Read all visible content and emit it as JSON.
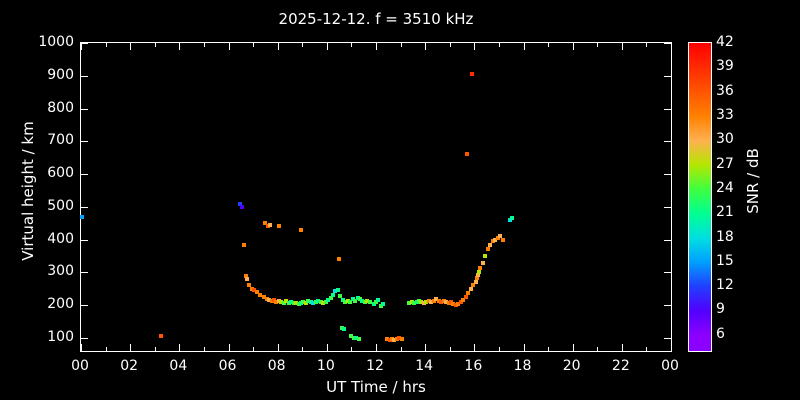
{
  "title": "2025-12-12. f = 3510 kHz",
  "axes": {
    "xlabel": "UT Time / hrs",
    "ylabel": "Virtual height / km",
    "xlim": [
      0,
      24
    ],
    "ylim": [
      60,
      1000
    ],
    "x_ticks": [
      {
        "v": 0,
        "label": "00"
      },
      {
        "v": 2,
        "label": "02"
      },
      {
        "v": 4,
        "label": "04"
      },
      {
        "v": 6,
        "label": "06"
      },
      {
        "v": 8,
        "label": "08"
      },
      {
        "v": 10,
        "label": "10"
      },
      {
        "v": 12,
        "label": "12"
      },
      {
        "v": 14,
        "label": "14"
      },
      {
        "v": 16,
        "label": "16"
      },
      {
        "v": 18,
        "label": "18"
      },
      {
        "v": 20,
        "label": "20"
      },
      {
        "v": 22,
        "label": "22"
      },
      {
        "v": 24,
        "label": "00"
      }
    ],
    "x_minor_step": 1,
    "y_ticks": [
      {
        "v": 100,
        "label": "100"
      },
      {
        "v": 200,
        "label": "200"
      },
      {
        "v": 300,
        "label": "300"
      },
      {
        "v": 400,
        "label": "400"
      },
      {
        "v": 500,
        "label": "500"
      },
      {
        "v": 600,
        "label": "600"
      },
      {
        "v": 700,
        "label": "700"
      },
      {
        "v": 800,
        "label": "800"
      },
      {
        "v": 900,
        "label": "900"
      },
      {
        "v": 1000,
        "label": "1000"
      }
    ],
    "background": "#000000",
    "frame_color": "#ffffff",
    "grid": false
  },
  "colorbar": {
    "label": "SNR / dB",
    "vmin": 4,
    "vmax": 42,
    "ticks": [
      42,
      39,
      36,
      33,
      30,
      27,
      24,
      21,
      18,
      15,
      12,
      9,
      6
    ],
    "stops": [
      {
        "v": 6,
        "c": "#8b00ff"
      },
      {
        "v": 9,
        "c": "#5000ff"
      },
      {
        "v": 12,
        "c": "#2040ff"
      },
      {
        "v": 15,
        "c": "#00a0ff"
      },
      {
        "v": 18,
        "c": "#00e0e0"
      },
      {
        "v": 21,
        "c": "#00ff90"
      },
      {
        "v": 24,
        "c": "#40ff40"
      },
      {
        "v": 27,
        "c": "#b4e600"
      },
      {
        "v": 30,
        "c": "#ffb050"
      },
      {
        "v": 33,
        "c": "#ff8000"
      },
      {
        "v": 36,
        "c": "#ff5500"
      },
      {
        "v": 39,
        "c": "#ff2a00"
      },
      {
        "v": 42,
        "c": "#ff0000"
      }
    ]
  },
  "chart_data": {
    "type": "scatter",
    "x_units": "hours UT",
    "y_units": "km",
    "c_units": "dB SNR",
    "points": [
      [
        0.05,
        470,
        15
      ],
      [
        3.25,
        105,
        36
      ],
      [
        6.45,
        510,
        12
      ],
      [
        6.55,
        500,
        9
      ],
      [
        6.65,
        385,
        33
      ],
      [
        6.7,
        290,
        33
      ],
      [
        6.75,
        280,
        30
      ],
      [
        6.85,
        260,
        33
      ],
      [
        6.95,
        250,
        33
      ],
      [
        7.05,
        245,
        36
      ],
      [
        7.15,
        240,
        33
      ],
      [
        7.3,
        230,
        33
      ],
      [
        7.45,
        225,
        33
      ],
      [
        7.5,
        450,
        33
      ],
      [
        7.6,
        440,
        36
      ],
      [
        7.7,
        445,
        30
      ],
      [
        8.05,
        440,
        33
      ],
      [
        8.95,
        430,
        33
      ],
      [
        7.55,
        220,
        33
      ],
      [
        7.65,
        215,
        30
      ],
      [
        7.75,
        212,
        33
      ],
      [
        7.85,
        215,
        36
      ],
      [
        7.95,
        210,
        33
      ],
      [
        8.05,
        213,
        30
      ],
      [
        8.15,
        210,
        27
      ],
      [
        8.25,
        208,
        24
      ],
      [
        8.35,
        212,
        27
      ],
      [
        8.45,
        207,
        24
      ],
      [
        8.55,
        210,
        21
      ],
      [
        8.65,
        205,
        24
      ],
      [
        8.75,
        208,
        27
      ],
      [
        8.85,
        203,
        24
      ],
      [
        8.95,
        207,
        21
      ],
      [
        9.05,
        210,
        24
      ],
      [
        9.15,
        206,
        27
      ],
      [
        9.25,
        213,
        24
      ],
      [
        9.35,
        209,
        21
      ],
      [
        9.45,
        205,
        18
      ],
      [
        9.55,
        210,
        24
      ],
      [
        9.65,
        214,
        21
      ],
      [
        9.75,
        210,
        24
      ],
      [
        9.85,
        206,
        27
      ],
      [
        9.95,
        211,
        24
      ],
      [
        10.05,
        216,
        21
      ],
      [
        10.15,
        222,
        24
      ],
      [
        10.25,
        232,
        21
      ],
      [
        10.35,
        242,
        18
      ],
      [
        10.45,
        246,
        21
      ],
      [
        10.5,
        340,
        33
      ],
      [
        10.55,
        228,
        24
      ],
      [
        10.6,
        130,
        24
      ],
      [
        10.7,
        126,
        21
      ],
      [
        10.65,
        216,
        21
      ],
      [
        10.75,
        211,
        24
      ],
      [
        10.85,
        214,
        27
      ],
      [
        10.95,
        209,
        24
      ],
      [
        11.0,
        105,
        24
      ],
      [
        11.1,
        100,
        24
      ],
      [
        11.2,
        99,
        21
      ],
      [
        11.3,
        98,
        24
      ],
      [
        11.05,
        219,
        21
      ],
      [
        11.15,
        214,
        24
      ],
      [
        11.25,
        223,
        21
      ],
      [
        11.35,
        218,
        24
      ],
      [
        11.45,
        213,
        21
      ],
      [
        11.55,
        209,
        24
      ],
      [
        11.65,
        214,
        27
      ],
      [
        11.75,
        209,
        24
      ],
      [
        11.9,
        204,
        21
      ],
      [
        12.0,
        209,
        24
      ],
      [
        12.1,
        215,
        21
      ],
      [
        12.2,
        198,
        24
      ],
      [
        12.3,
        204,
        21
      ],
      [
        12.45,
        97,
        33
      ],
      [
        12.55,
        95,
        36
      ],
      [
        12.65,
        98,
        33
      ],
      [
        12.75,
        95,
        30
      ],
      [
        12.85,
        96,
        33
      ],
      [
        12.95,
        100,
        36
      ],
      [
        13.05,
        98,
        33
      ],
      [
        13.35,
        206,
        24
      ],
      [
        13.45,
        210,
        27
      ],
      [
        13.55,
        205,
        24
      ],
      [
        13.65,
        209,
        21
      ],
      [
        13.75,
        214,
        24
      ],
      [
        13.85,
        210,
        27
      ],
      [
        13.95,
        206,
        30
      ],
      [
        14.05,
        210,
        27
      ],
      [
        14.15,
        214,
        33
      ],
      [
        14.25,
        209,
        30
      ],
      [
        14.35,
        214,
        33
      ],
      [
        14.45,
        219,
        30
      ],
      [
        14.55,
        214,
        33
      ],
      [
        14.65,
        210,
        36
      ],
      [
        14.75,
        214,
        33
      ],
      [
        14.85,
        209,
        30
      ],
      [
        14.95,
        205,
        33
      ],
      [
        15.05,
        209,
        36
      ],
      [
        15.15,
        204,
        33
      ],
      [
        15.25,
        200,
        36
      ],
      [
        15.35,
        204,
        33
      ],
      [
        15.45,
        209,
        36
      ],
      [
        15.55,
        216,
        33
      ],
      [
        15.65,
        226,
        36
      ],
      [
        15.75,
        237,
        33
      ],
      [
        15.85,
        250,
        30
      ],
      [
        15.7,
        660,
        36
      ],
      [
        15.9,
        905,
        39
      ],
      [
        15.95,
        262,
        33
      ],
      [
        16.05,
        272,
        30
      ],
      [
        16.1,
        282,
        33
      ],
      [
        16.15,
        292,
        30
      ],
      [
        16.2,
        302,
        27
      ],
      [
        16.25,
        312,
        33
      ],
      [
        16.35,
        330,
        30
      ],
      [
        16.45,
        350,
        27
      ],
      [
        16.55,
        370,
        33
      ],
      [
        16.65,
        385,
        30
      ],
      [
        16.75,
        395,
        33
      ],
      [
        16.85,
        400,
        30
      ],
      [
        16.95,
        405,
        33
      ],
      [
        17.05,
        410,
        30
      ],
      [
        17.15,
        400,
        33
      ],
      [
        17.45,
        460,
        18
      ],
      [
        17.55,
        465,
        21
      ]
    ]
  }
}
